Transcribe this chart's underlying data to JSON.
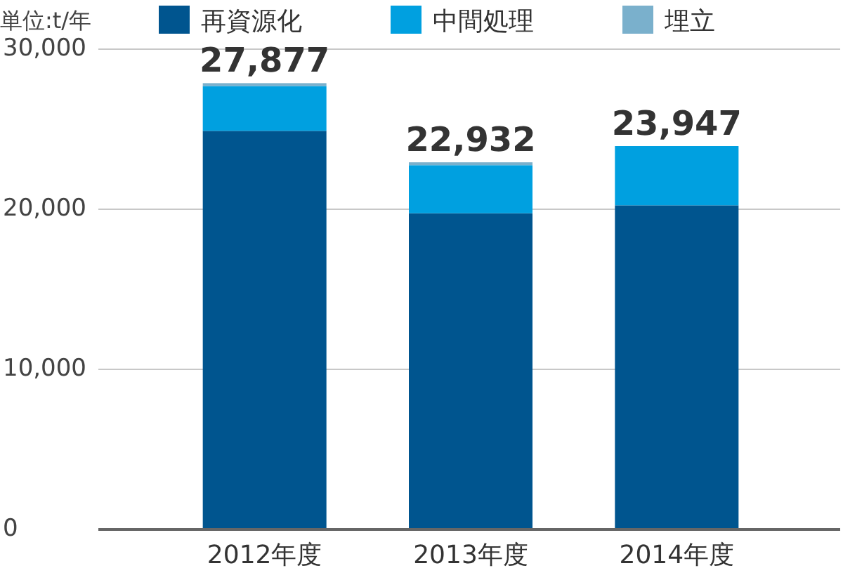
{
  "chart_data": {
    "type": "bar",
    "stacked": true,
    "ylabel": "単位:t/年",
    "categories": [
      "2012年度",
      "2013年度",
      "2014年度"
    ],
    "series": [
      {
        "name": "再資源化",
        "color": "#00558f",
        "values": [
          24897,
          19752,
          20247
        ]
      },
      {
        "name": "中間処理",
        "color": "#00a0e0",
        "values": [
          2800,
          3000,
          3700
        ]
      },
      {
        "name": "埋立",
        "color": "#7ab0cc",
        "values": [
          180,
          180,
          0
        ]
      }
    ],
    "totals": [
      "27,877",
      "22,932",
      "23,947"
    ],
    "ylim": [
      0,
      30000
    ],
    "yticks": [
      {
        "value": 0,
        "label": "0"
      },
      {
        "value": 10000,
        "label": "10,000"
      },
      {
        "value": 20000,
        "label": "20,000"
      },
      {
        "value": 30000,
        "label": "30,000"
      }
    ],
    "grid": "y",
    "legend": "top"
  }
}
